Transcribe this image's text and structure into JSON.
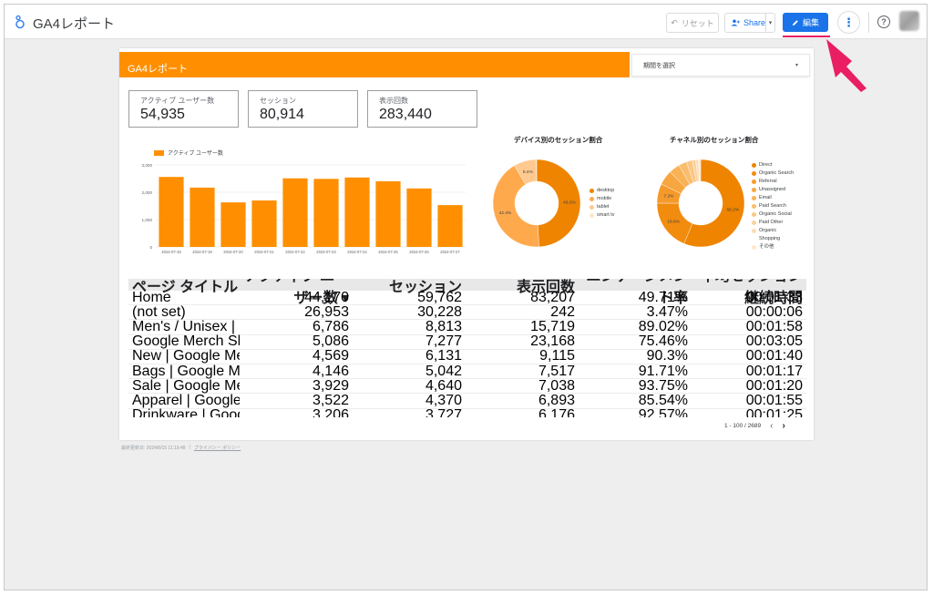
{
  "app": {
    "title": "GA4レポート",
    "reset_label": "リセット",
    "share_label": "Share",
    "edit_label": "編集",
    "help_glyph": "?",
    "more_glyph": "⋮"
  },
  "report": {
    "title": "GA4レポート",
    "date_picker_label": "期間を選択",
    "kpis": [
      {
        "label": "アクティブ ユーザー数",
        "value": "54,935"
      },
      {
        "label": "セッション",
        "value": "80,914"
      },
      {
        "label": "表示回数",
        "value": "283,440"
      }
    ],
    "bar_legend": "アクティブ ユーザー数",
    "device_chart_title": "デバイス別のセッション割合",
    "channel_chart_title": "チャネル別のセッション割合",
    "table": {
      "headers": [
        "ページ タイトル",
        "アクティブ ユーザー数 ▾",
        "セッション",
        "表示回数",
        "エンゲージメント率",
        "平均セッション継続時間"
      ],
      "rows": [
        [
          "Home",
          "44,170",
          "59,762",
          "83,207",
          "49.71%",
          "00:01:33"
        ],
        [
          "(not set)",
          "26,953",
          "30,228",
          "242",
          "3.47%",
          "00:00:06"
        ],
        [
          "Men's / Unisex | Google Merch Shop",
          "6,786",
          "8,813",
          "15,719",
          "89.02%",
          "00:01:58"
        ],
        [
          "Google Merch Shop",
          "5,086",
          "7,277",
          "23,168",
          "75.46%",
          "00:03:05"
        ],
        [
          "New | Google Merch Shop",
          "4,569",
          "6,131",
          "9,115",
          "90.3%",
          "00:01:40"
        ],
        [
          "Bags | Google Merch Shop",
          "4,146",
          "5,042",
          "7,517",
          "91.71%",
          "00:01:17"
        ],
        [
          "Sale | Google Merch Shop",
          "3,929",
          "4,640",
          "7,038",
          "93.75%",
          "00:01:20"
        ],
        [
          "Apparel | Google Merch Shop",
          "3,522",
          "4,370",
          "6,893",
          "85.54%",
          "00:01:55"
        ],
        [
          "Drinkware | Google Merch Shop",
          "3,206",
          "3,727",
          "6,176",
          "92.57%",
          "00:01:25"
        ]
      ],
      "pagination": "1 - 100 / 2689"
    },
    "footer": {
      "updated": "最終更新日: 2024/8/15 11:19:48",
      "separator": "|",
      "privacy": "プライバシー ポリシー"
    }
  },
  "colors": {
    "accent": "#ff8f00",
    "primary_button": "#1a73e8",
    "annotation_arrow": "#e91e63"
  },
  "chart_data": [
    {
      "type": "bar",
      "categories": [
        "2024-07-18",
        "2024-07-19",
        "2024-07-20",
        "2024-07-21",
        "2024-07-22",
        "2024-07-23",
        "2024-07-24",
        "2024-07-25",
        "2024-07-26",
        "2024-07-27"
      ],
      "series": [
        {
          "name": "アクティブ ユーザー数",
          "values": [
            2560,
            2170,
            1630,
            1700,
            2510,
            2490,
            2540,
            2400,
            2140,
            1530
          ]
        }
      ],
      "ylim": [
        0,
        3000
      ],
      "yticks": [
        "0",
        "1,000",
        "2,000",
        "3,000"
      ],
      "grid": true,
      "legend": "top-left"
    },
    {
      "type": "pie",
      "title": "デバイス別のセッション割合",
      "labels": [
        "desktop",
        "mobile",
        "tablet",
        "smart tv"
      ],
      "values": [
        49.2,
        42.4,
        8.4,
        0.1
      ],
      "colors": [
        "#ef8400",
        "#ffa94d",
        "#ffc98f",
        "#fde5c8"
      ],
      "slice_labels": [
        "49.2%",
        "42.4%",
        "8.4%",
        ""
      ],
      "legend": "right"
    },
    {
      "type": "pie",
      "title": "チャネル別のセッション割合",
      "labels": [
        "Direct",
        "Organic Search",
        "Referral",
        "Unassigned",
        "Email",
        "Paid Search",
        "Organic Social",
        "Paid Other",
        "Organic Shopping",
        "その他"
      ],
      "values": [
        56.2,
        18.8,
        7.2,
        5.5,
        4.0,
        3.0,
        2.2,
        1.3,
        1.0,
        0.8
      ],
      "colors": [
        "#ef8400",
        "#f28c0f",
        "#f59a2a",
        "#f7a640",
        "#f9b256",
        "#fabd6d",
        "#fbc785",
        "#fcd29d",
        "#fddcb5",
        "#fee7cd"
      ],
      "slice_labels": [
        "56.2%",
        "18.8%",
        "7.2%",
        "",
        "",
        "",
        "",
        "",
        "",
        ""
      ],
      "legend": "right"
    }
  ]
}
